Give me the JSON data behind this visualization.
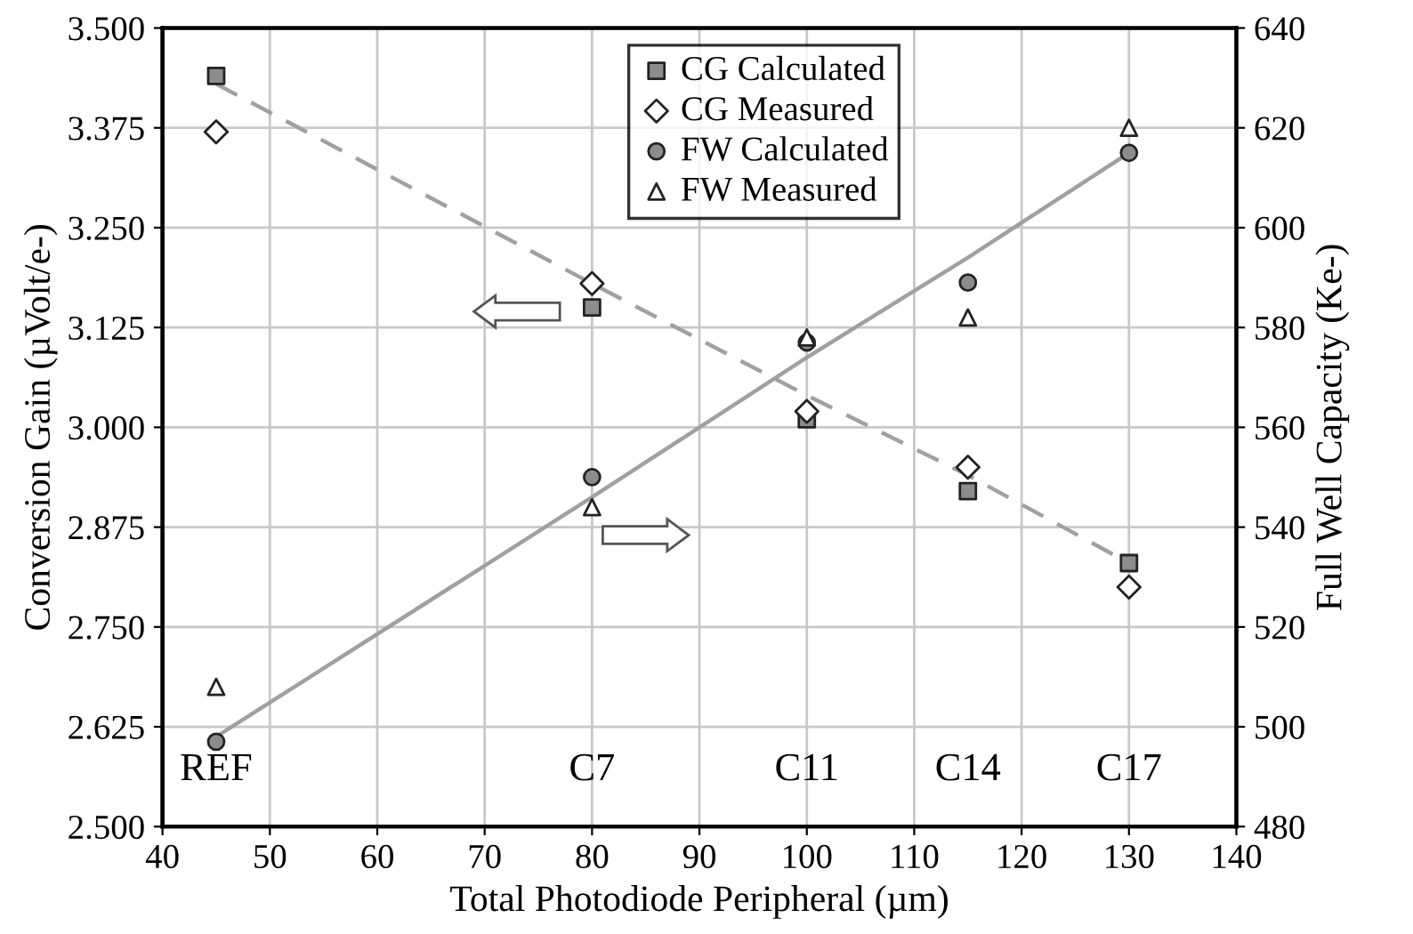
{
  "chart_data": {
    "type": "scatter",
    "xlabel": "Total Photodiode Peripheral (µm)",
    "ylabel": "Conversion Gain (µVolt/e-)",
    "y2label": "Full Well Capacity (Ke-)",
    "x": [
      45,
      80,
      100,
      115,
      130
    ],
    "series": [
      {
        "name": "CG Calculated",
        "color": "#8c8c8c",
        "marker": "square",
        "values": [
          3.44,
          3.15,
          3.01,
          2.92,
          2.83
        ]
      },
      {
        "name": "CG Measured",
        "color": "#ffffff",
        "marker": "diamond",
        "values": [
          3.37,
          3.18,
          3.02,
          2.95,
          2.8
        ]
      },
      {
        "name": "FW Calculated",
        "color": "#8c8c8c",
        "marker": "circle",
        "axis": "y2",
        "values": [
          497,
          550,
          577,
          589,
          615
        ]
      },
      {
        "name": "FW Measured",
        "color": "#ffffff",
        "marker": "triangle",
        "axis": "y2",
        "values": [
          508,
          544,
          578,
          582,
          620
        ]
      },
      {
        "type": "line",
        "color": "#a0a0a0",
        "line_style": "dashed",
        "marker": "none",
        "values": [
          3.43,
          3.18,
          3.04,
          2.94,
          2.83
        ]
      },
      {
        "type": "line",
        "color": "#a0a0a0",
        "line_style": "solid",
        "marker": "none",
        "axis": "y2",
        "values": [
          498,
          546,
          574,
          594,
          615
        ]
      }
    ],
    "annotations": [
      "REF",
      "C7",
      "C11",
      "C14",
      "C17"
    ],
    "xlim": [
      40,
      140
    ],
    "xticks": [
      40,
      50,
      60,
      70,
      80,
      90,
      100,
      110,
      120,
      130,
      140
    ],
    "ylim": [
      2.5,
      3.5
    ],
    "yticks": [
      {
        "value": 2.5,
        "label": "2.500"
      },
      {
        "value": 2.625,
        "label": "2.625"
      },
      {
        "value": 2.75,
        "label": "2.750"
      },
      {
        "value": 2.875,
        "label": "2.875"
      },
      {
        "value": 3.0,
        "label": "3.000"
      },
      {
        "value": 3.125,
        "label": "3.125"
      },
      {
        "value": 3.25,
        "label": "3.250"
      },
      {
        "value": 3.375,
        "label": "3.375"
      },
      {
        "value": 3.5,
        "label": "3.500"
      }
    ],
    "y2lim": [
      480,
      640
    ],
    "y2ticks": [
      480,
      500,
      520,
      540,
      560,
      580,
      600,
      620,
      640
    ],
    "grid": true,
    "legend": "top"
  }
}
